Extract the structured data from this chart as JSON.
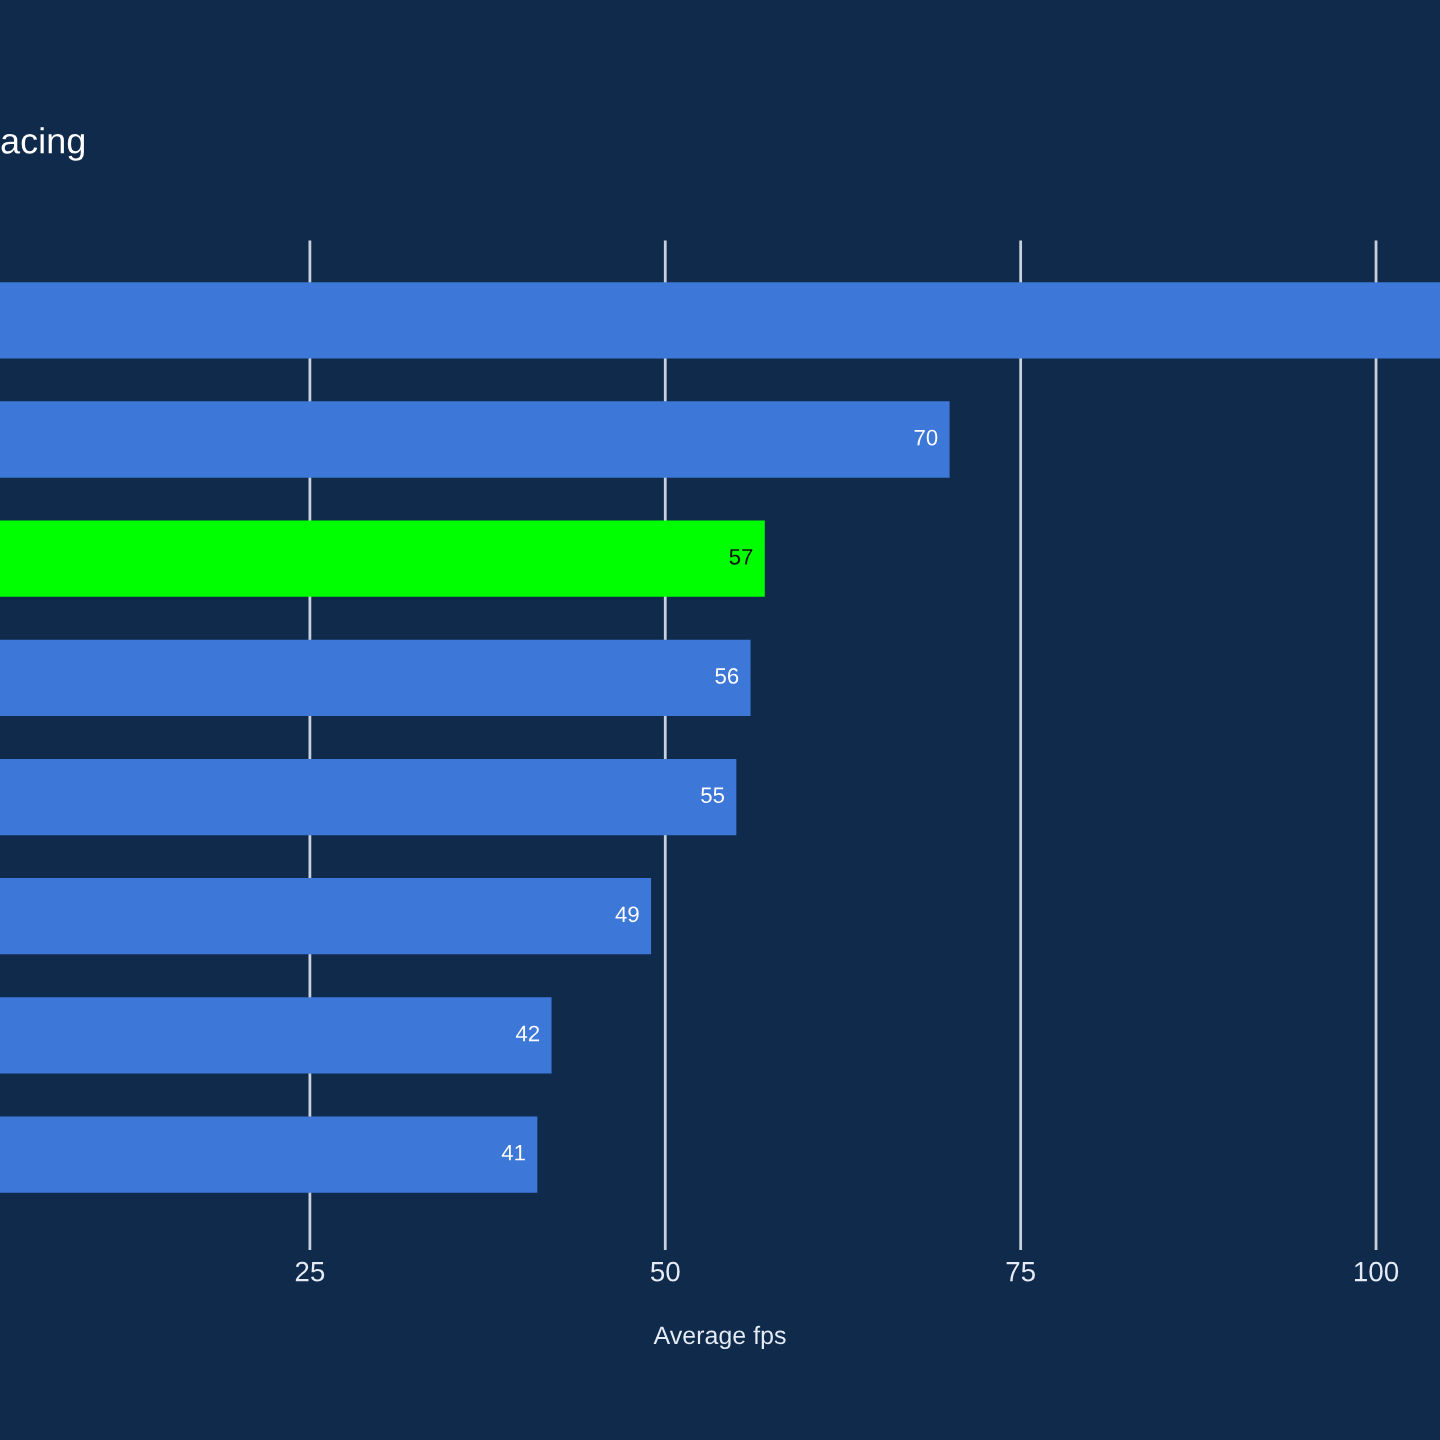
{
  "chart_data": {
    "type": "bar",
    "orientation": "horizontal",
    "title": "acing",
    "xlabel": "Average fps",
    "categories": [
      null,
      null,
      null,
      null,
      null,
      null,
      null,
      null
    ],
    "values": [
      104.5,
      70,
      57,
      56,
      55,
      49,
      42,
      41
    ],
    "colors": [
      "#3d78d8",
      "#3d78d8",
      "#00ff00",
      "#3d78d8",
      "#3d78d8",
      "#3d78d8",
      "#3d78d8",
      "#3d78d8"
    ],
    "value_labels": [
      null,
      "70",
      "57",
      "56",
      "55",
      "49",
      "42",
      "41"
    ],
    "xlim": [
      3.2,
      104.5
    ],
    "xticks": [
      25,
      50,
      75,
      100
    ],
    "grid": "x"
  }
}
